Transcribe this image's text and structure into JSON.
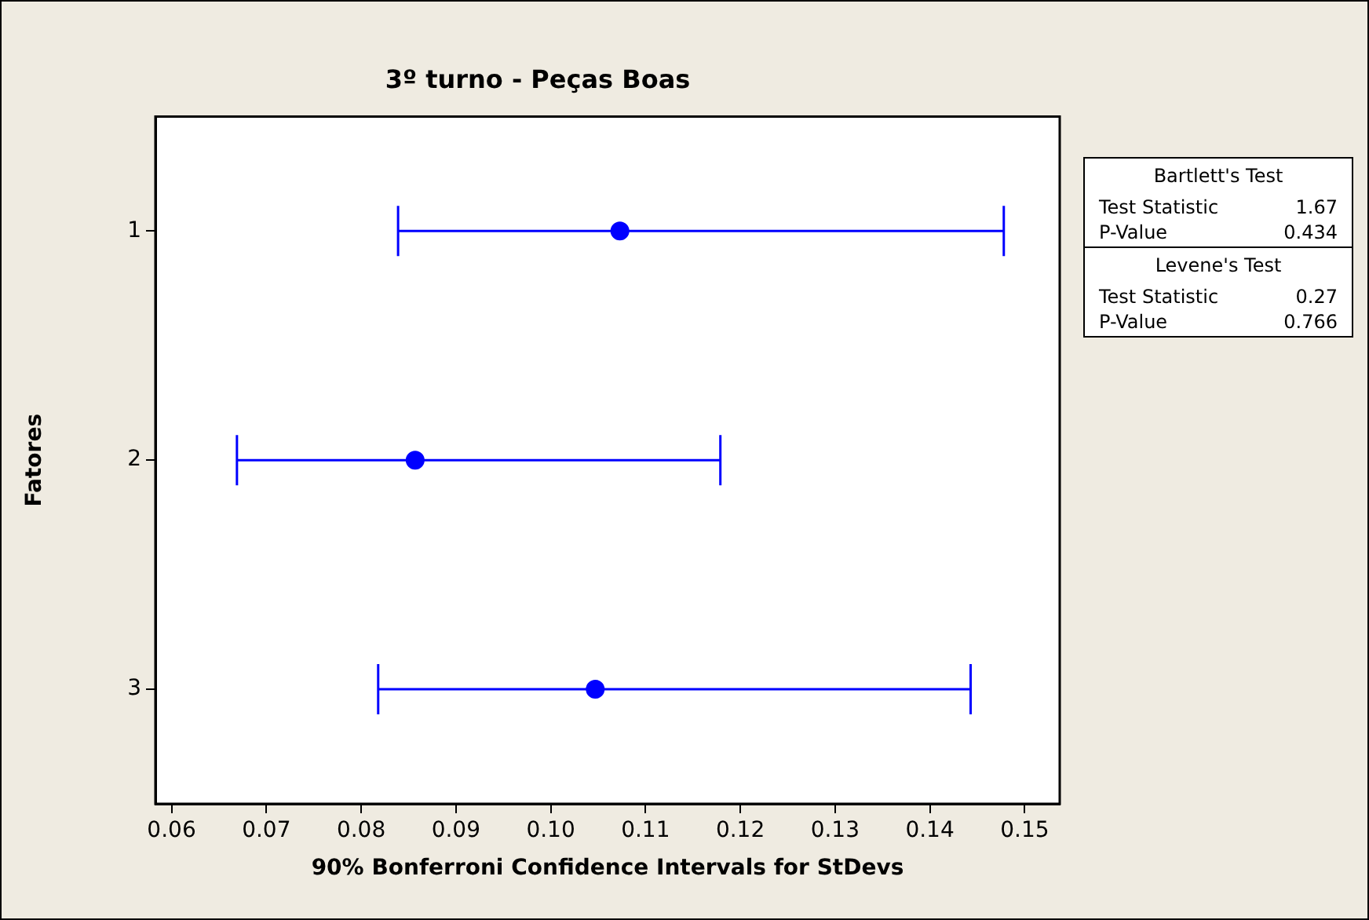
{
  "chart_data": {
    "type": "scatter",
    "orientation": "horizontal",
    "title": "3º turno - Peças Boas",
    "xlabel": "90% Bonferroni Confidence Intervals for StDevs",
    "ylabel": "Fatores",
    "categories": [
      "1",
      "2",
      "3"
    ],
    "series": [
      {
        "color": "#0000ff",
        "values": [
          0.1073,
          0.0857,
          0.1047
        ],
        "errors": [
          [
            0.0839,
            0.1478
          ],
          [
            0.0669,
            0.1179
          ],
          [
            0.0818,
            0.1443
          ]
        ]
      }
    ],
    "xlim": [
      0.0583,
      0.1537
    ],
    "xticks": [
      0.06,
      0.07,
      0.08,
      0.09,
      {
        "value": 0.1,
        "label": "0.10"
      },
      0.11,
      0.12,
      0.13,
      0.14,
      0.15
    ],
    "marker": "circle",
    "grid": false,
    "legend": false,
    "annotations": [
      "Bartlett's Test",
      "Test Statistic",
      "1.67",
      "P-Value",
      "0.434",
      "Levene's Test",
      "Test Statistic",
      "0.27",
      "P-Value",
      "0.766"
    ]
  }
}
